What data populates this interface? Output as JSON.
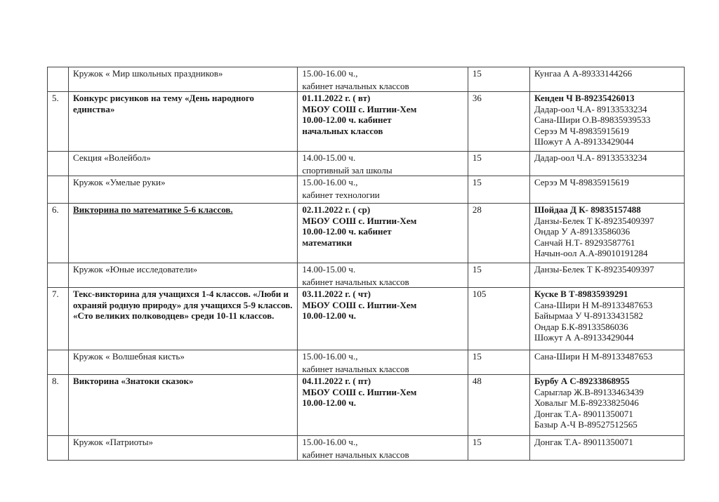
{
  "rows": [
    {
      "num": "",
      "event": "Кружок « Мир школьных праздников»",
      "event_bold": false,
      "time": [
        "15.00-16.00 ч.,",
        "кабинет начальных классов"
      ],
      "time_bold": false,
      "count": "15",
      "contacts_lead": "",
      "contacts": [
        "Кунгаа А А-89333144266"
      ]
    },
    {
      "num": "5.",
      "event": "Конкурс рисунков на тему «День народного единства»",
      "event_bold": true,
      "time": [
        "01.11.2022 г. ( вт)",
        "МБОУ СОШ с. Иштии-Хем",
        "10.00-12.00 ч. кабинет",
        "начальных классов"
      ],
      "time_bold": true,
      "count": "36",
      "contacts_lead": "Кенден Ч В-89235426013",
      "contacts": [
        "Дадар-оол Ч.А- 89133533234",
        "Сана-Шири О.В-89835939533",
        "Серээ М Ч-89835915619",
        "Шожут А А-89133429044"
      ]
    },
    {
      "num": "",
      "event": "Секция «Волейбол»",
      "event_bold": false,
      "time": [
        "14.00-15.00 ч.",
        "спортивный зал школы"
      ],
      "time_bold": false,
      "count": "15",
      "contacts_lead": "",
      "contacts": [
        "Дадар-оол Ч.А- 89133533234"
      ]
    },
    {
      "num": "",
      "event": "Кружок «Умелые руки»",
      "event_bold": false,
      "time": [
        "15.00-16.00 ч.,",
        "кабинет технологии"
      ],
      "time_bold": false,
      "count": "15",
      "contacts_lead": "",
      "contacts": [
        "Серээ М Ч-89835915619"
      ]
    },
    {
      "num": "6.",
      "event": "Викторина по математике 5-6 классов.",
      "event_bold": true,
      "time": [
        "02.11.2022 г. ( ср)",
        "МБОУ СОШ с. Иштии-Хем",
        "10.00-12.00 ч. кабинет",
        "математики"
      ],
      "time_bold": true,
      "count": "28",
      "contacts_lead": "Шойдаа Д К- 89835157488",
      "contacts": [
        "Данзы-Белек Т К-89235409397",
        "Ондар У А-89133586036",
        "Санчай Н.Т- 89293587761",
        "Начын-оол А.А-89010191284"
      ]
    },
    {
      "num": "",
      "event": "Кружок «Юные  исследователи»",
      "event_bold": false,
      "time": [
        "14.00-15.00 ч.",
        "кабинет начальных классов"
      ],
      "time_bold": false,
      "count": "15",
      "contacts_lead": "",
      "contacts": [
        "Данзы-Белек Т К-89235409397"
      ]
    },
    {
      "num": "7.",
      "event": "Текс-викторина для учащихся 1-4 классов. «Люби и охраняй родную природу» для учащихся 5-9 классов. «Сто великих полководцев» среди 10-11 классов.",
      "event_bold": true,
      "time": [
        "03.11.2022 г. ( чт)",
        "МБОУ СОШ с. Иштии-Хем",
        "10.00-12.00 ч."
      ],
      "time_bold": true,
      "count": "105",
      "contacts_lead": "Куске В Т-89835939291",
      "contacts": [
        "Сана-Шири Н М-89133487653",
        "Байырмаа У Ч-89133431582",
        "Ондар Б.К-89133586036",
        "Шожут А А-89133429044"
      ]
    },
    {
      "num": "",
      "event": "Кружок « Волшебная кисть»",
      "event_bold": false,
      "time": [
        "15.00-16.00 ч.,",
        "кабинет начальных классов"
      ],
      "time_bold": false,
      "count": "15",
      "contacts_lead": "",
      "contacts": [
        "Сана-Шири Н М-89133487653"
      ]
    },
    {
      "num": "8.",
      "event": "Викторина «Знатоки сказок»",
      "event_bold": true,
      "time": [
        "04.11.2022 г. ( пт)",
        "МБОУ СОШ с. Иштии-Хем",
        "10.00-12.00 ч."
      ],
      "time_bold": true,
      "count": "48",
      "contacts_lead": "Бурбу А С-89233868955",
      "contacts": [
        "Сарыглар Ж.В-89133463439",
        "Ховалыг М.Б-89233825046",
        "Донгак Т.А- 89011350071",
        "Базыр А-Ч В-89527512565"
      ]
    },
    {
      "num": "",
      "event": "Кружок «Патриоты»",
      "event_bold": false,
      "time": [
        "15.00-16.00 ч.,",
        "кабинет начальных классов"
      ],
      "time_bold": false,
      "count": "15",
      "contacts_lead": "",
      "contacts": [
        "Донгак Т.А- 89011350071"
      ]
    }
  ]
}
